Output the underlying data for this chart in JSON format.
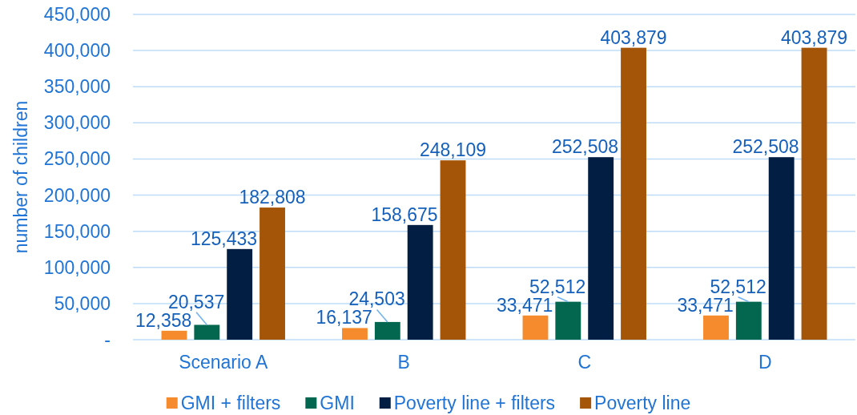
{
  "chart_data": {
    "type": "bar",
    "ylabel": "number of children",
    "categories": [
      "Scenario A",
      "B",
      "C",
      "D"
    ],
    "series": [
      {
        "name": "GMI + filters",
        "color": "#f68b2e",
        "values": [
          12358,
          16137,
          33471,
          33471
        ],
        "value_labels": [
          "12,358",
          "16,137",
          "33,471",
          "33,471"
        ]
      },
      {
        "name": "GMI",
        "color": "#03664f",
        "values": [
          20537,
          24503,
          52512,
          52512
        ],
        "value_labels": [
          "20,537",
          "24,503",
          "52,512",
          "52,512"
        ]
      },
      {
        "name": "Poverty line + filters",
        "color": "#021f43",
        "values": [
          125433,
          158675,
          252508,
          252508
        ],
        "value_labels": [
          "125,433",
          "158,675",
          "252,508",
          "252,508"
        ]
      },
      {
        "name": "Poverty line",
        "color": "#a55507",
        "values": [
          182808,
          248109,
          403879,
          403879
        ],
        "value_labels": [
          "182,808",
          "248,109",
          "403,879",
          "403,879"
        ]
      }
    ],
    "ylim": [
      0,
      450000
    ],
    "yticks": [
      {
        "value": 0,
        "label": "-"
      },
      {
        "value": 50000,
        "label": "50,000"
      },
      {
        "value": 100000,
        "label": "100,000"
      },
      {
        "value": 150000,
        "label": "150,000"
      },
      {
        "value": 200000,
        "label": "200,000"
      },
      {
        "value": 250000,
        "label": "250,000"
      },
      {
        "value": 300000,
        "label": "300,000"
      },
      {
        "value": 350000,
        "label": "350,000"
      },
      {
        "value": 400000,
        "label": "400,000"
      },
      {
        "value": 450000,
        "label": "450,000"
      }
    ],
    "grid": "y",
    "legend": "bottom"
  }
}
